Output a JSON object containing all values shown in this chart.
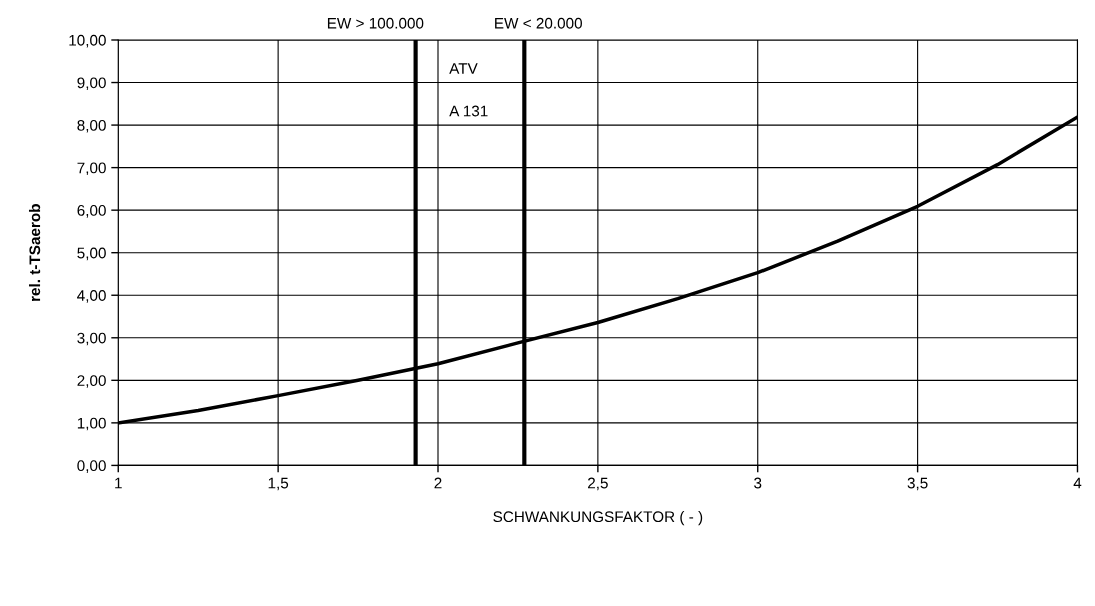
{
  "chart_data": {
    "type": "line",
    "xlabel": "SCHWANKUNGSFAKTOR ( - )",
    "ylabel": "rel. t-TSaerob",
    "x": [
      1,
      1.25,
      1.5,
      1.75,
      2,
      2.25,
      2.5,
      2.75,
      3,
      3.25,
      3.5,
      3.75,
      4
    ],
    "series": [
      {
        "color": "#000000",
        "values": [
          1.0,
          1.29,
          1.64,
          2.0,
          2.39,
          2.88,
          3.36,
          3.92,
          4.53,
          5.27,
          6.09,
          7.07,
          8.19
        ]
      }
    ],
    "xlim": [
      1,
      4
    ],
    "xticks": [
      {
        "value": 1,
        "label": "1"
      },
      {
        "value": 1.5,
        "label": "1,5"
      },
      {
        "value": 2,
        "label": "2"
      },
      {
        "value": 2.5,
        "label": "2,5"
      },
      {
        "value": 3,
        "label": "3"
      },
      {
        "value": 3.5,
        "label": "3,5"
      },
      {
        "value": 4,
        "label": "4"
      }
    ],
    "ylim": [
      0,
      10
    ],
    "yticks": [
      {
        "value": 0,
        "label": "0,00"
      },
      {
        "value": 1,
        "label": "1,00"
      },
      {
        "value": 2,
        "label": "2,00"
      },
      {
        "value": 3,
        "label": "3,00"
      },
      {
        "value": 4,
        "label": "4,00"
      },
      {
        "value": 5,
        "label": "5,00"
      },
      {
        "value": 6,
        "label": "6,00"
      },
      {
        "value": 7,
        "label": "7,00"
      },
      {
        "value": 8,
        "label": "8,00"
      },
      {
        "value": 9,
        "label": "9,00"
      },
      {
        "value": 10,
        "label": "10,00"
      }
    ],
    "ref_lines": [
      {
        "axis": "x",
        "value": 1.93,
        "label": "EW > 100.000",
        "color": "#000000"
      },
      {
        "axis": "x",
        "value": 2.27,
        "label": "EW < 20.000",
        "color": "#000000"
      }
    ],
    "annotations": [
      "ATV",
      "A 131"
    ],
    "grid": true,
    "legend": false,
    "marker": "none",
    "line_style": "solid"
  }
}
